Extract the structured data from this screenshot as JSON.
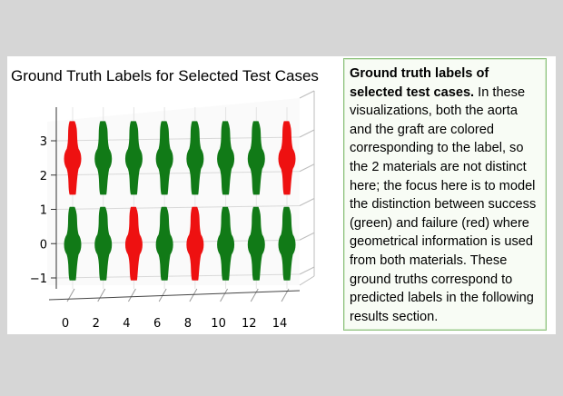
{
  "chart_data": {
    "type": "scatter",
    "title": "Ground Truth Labels for Selected Test Cases",
    "x_ticks": [
      "0",
      "2",
      "4",
      "6",
      "8",
      "10",
      "12",
      "14"
    ],
    "y_ticks": [
      "−1",
      "0",
      "1",
      "2",
      "3"
    ],
    "xlim": [
      0,
      14
    ],
    "ylim": [
      -1,
      3
    ],
    "colors": {
      "success": "#117a17",
      "failure": "#ee1111"
    },
    "rows": [
      {
        "y": 2.5,
        "labels": [
          "failure",
          "success",
          "success",
          "success",
          "success",
          "success",
          "success",
          "failure"
        ]
      },
      {
        "y": 0,
        "labels": [
          "success",
          "success",
          "failure",
          "success",
          "failure",
          "success",
          "success",
          "success"
        ]
      }
    ],
    "x_positions": [
      0,
      2,
      4,
      6,
      8,
      10,
      12,
      14
    ]
  },
  "caption": {
    "bold": "Ground truth labels of selected test cases.",
    "body": " In these visualizations, both the aorta and the graft are colored corresponding to the label, so the 2 materials are not distinct here; the focus here is to model the distinction between success (green) and failure (red) where geometrical information is used from both materials. These ground truths correspond to predicted labels in the following results section."
  }
}
